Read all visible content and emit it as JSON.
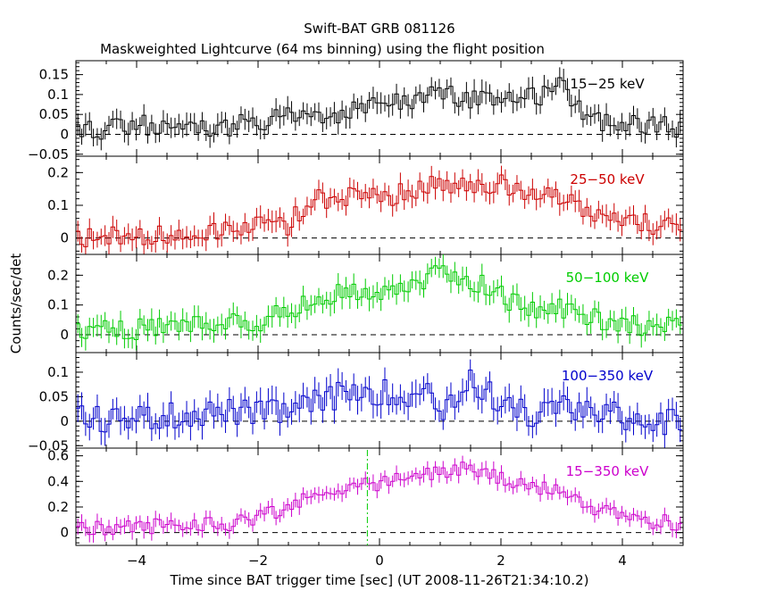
{
  "title": "Swift-BAT GRB 081126",
  "subtitle": "Maskweighted Lightcurve (64 ms binning) using the flight position",
  "xlabel": "Time since BAT trigger time [sec] (UT 2008-11-26T21:34:10.2)",
  "ylabel": "Counts/sec/det",
  "chart_data": {
    "type": "line",
    "xlim": [
      -5,
      5
    ],
    "x_ticks": [
      -4,
      -2,
      0,
      2,
      4
    ],
    "x_tick_labels": [
      "−4",
      "−2",
      "0",
      "2",
      "4"
    ],
    "bin_width_s": 0.064,
    "trigger_marker_x": -0.2,
    "trigger_marker_color": "#00cc00",
    "grid": false,
    "panels": [
      {
        "name": "15−25 keV",
        "color": "#000000",
        "ylim": [
          -0.055,
          0.185
        ],
        "y_ticks": [
          -0.05,
          0,
          0.05,
          0.1,
          0.15
        ],
        "y_tick_labels": [
          "−0.05",
          "0",
          "0.05",
          "0.1",
          "0.15"
        ],
        "x": [
          -4.5,
          -3.5,
          -2.5,
          -1.5,
          -1.0,
          -0.5,
          0.0,
          0.5,
          1.0,
          1.5,
          2.0,
          2.5,
          3.0,
          3.5,
          4.0,
          4.5
        ],
        "y": [
          0.01,
          0.03,
          0.015,
          0.05,
          0.04,
          0.06,
          0.08,
          0.09,
          0.1,
          0.09,
          0.1,
          0.09,
          0.12,
          0.04,
          0.03,
          0.02
        ],
        "err": 0.025
      },
      {
        "name": "25−50 keV",
        "color": "#cc0000",
        "ylim": [
          -0.05,
          0.25
        ],
        "y_ticks": [
          0,
          0.1,
          0.2
        ],
        "y_tick_labels": [
          "0",
          "0.1",
          "0.2"
        ],
        "x": [
          -4.5,
          -3.5,
          -2.5,
          -2.0,
          -1.5,
          -1.3,
          -1.0,
          -0.5,
          0.0,
          0.5,
          0.8,
          1.0,
          1.5,
          2.0,
          2.5,
          3.0,
          3.5,
          4.0,
          4.5
        ],
        "y": [
          0.0,
          0.01,
          0.03,
          0.04,
          0.04,
          0.09,
          0.12,
          0.13,
          0.12,
          0.14,
          0.17,
          0.16,
          0.15,
          0.16,
          0.14,
          0.11,
          0.08,
          0.05,
          0.04
        ],
        "err": 0.03
      },
      {
        "name": "50−100 keV",
        "color": "#00cc00",
        "ylim": [
          -0.06,
          0.27
        ],
        "y_ticks": [
          0,
          0.1,
          0.2
        ],
        "y_tick_labels": [
          "0",
          "0.1",
          "0.2"
        ],
        "x": [
          -4.5,
          -3.5,
          -2.5,
          -2.0,
          -1.5,
          -1.0,
          -0.5,
          0.0,
          0.5,
          1.0,
          1.5,
          2.0,
          2.5,
          3.0,
          3.5,
          4.0,
          4.5
        ],
        "y": [
          0.02,
          0.02,
          0.04,
          0.05,
          0.07,
          0.12,
          0.14,
          0.15,
          0.17,
          0.2,
          0.19,
          0.13,
          0.08,
          0.09,
          0.06,
          0.04,
          0.03
        ],
        "err": 0.035
      },
      {
        "name": "100−350 keV",
        "color": "#0000cc",
        "ylim": [
          -0.055,
          0.14
        ],
        "y_ticks": [
          -0.05,
          0,
          0.05,
          0.1
        ],
        "y_tick_labels": [
          "−0.05",
          "0",
          "0.05",
          "0.1"
        ],
        "x": [
          -4.5,
          -3.5,
          -2.5,
          -2.0,
          -1.5,
          -1.0,
          -0.5,
          0.0,
          0.5,
          0.8,
          1.0,
          1.5,
          2.0,
          2.5,
          3.0,
          3.5,
          4.0,
          4.5
        ],
        "y": [
          0.005,
          0.01,
          0.02,
          0.015,
          0.02,
          0.04,
          0.06,
          0.06,
          0.05,
          0.07,
          0.02,
          0.08,
          0.04,
          0.01,
          0.03,
          0.02,
          0.01,
          0.0
        ],
        "err": 0.025
      },
      {
        "name": "15−350 keV",
        "color": "#cc00cc",
        "ylim": [
          -0.1,
          0.66
        ],
        "y_ticks": [
          0,
          0.2,
          0.4,
          0.6
        ],
        "y_tick_labels": [
          "0",
          "0.2",
          "0.4",
          "0.6"
        ],
        "x": [
          -4.5,
          -3.5,
          -2.5,
          -2.0,
          -1.5,
          -1.0,
          -0.5,
          0.0,
          0.5,
          1.0,
          1.5,
          2.0,
          2.5,
          3.0,
          3.5,
          4.0,
          4.5
        ],
        "y": [
          0.03,
          0.06,
          0.07,
          0.13,
          0.2,
          0.3,
          0.38,
          0.38,
          0.43,
          0.48,
          0.5,
          0.42,
          0.33,
          0.36,
          0.18,
          0.12,
          0.08
        ],
        "err": 0.055
      }
    ]
  }
}
